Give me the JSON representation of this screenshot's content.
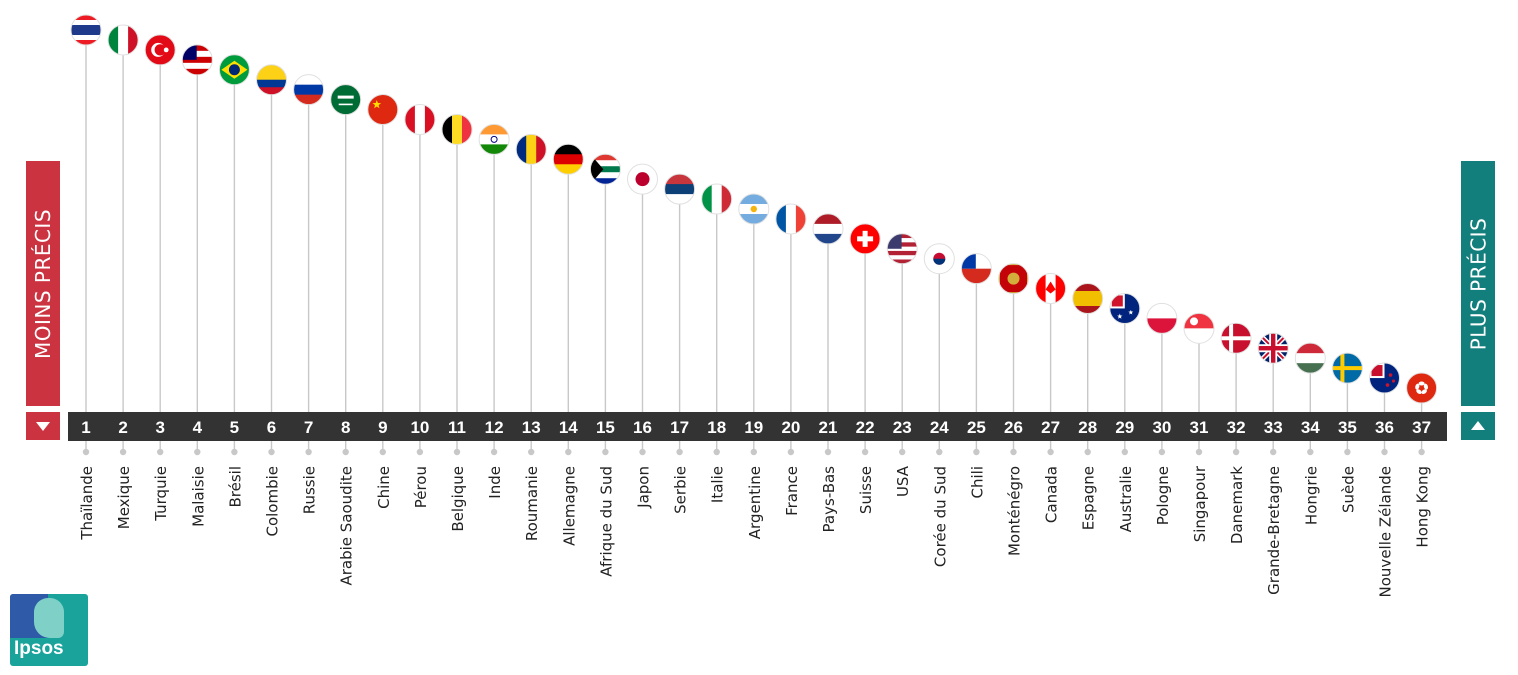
{
  "chart_data": {
    "type": "lollipop",
    "labels": {
      "left": "MOINS PRÉCIS",
      "right": "PLUS PRÉCIS"
    },
    "ranks": [
      1,
      2,
      3,
      4,
      5,
      6,
      7,
      8,
      9,
      10,
      11,
      12,
      13,
      14,
      15,
      16,
      17,
      18,
      19,
      20,
      21,
      22,
      23,
      24,
      25,
      26,
      27,
      28,
      29,
      30,
      31,
      32,
      33,
      34,
      35,
      36,
      37
    ],
    "countries": [
      "Thaïlande",
      "Mexique",
      "Turquie",
      "Malaisie",
      "Brésil",
      "Colombie",
      "Russie",
      "Arabie Saoudite",
      "Chine",
      "Pérou",
      "Belgique",
      "Inde",
      "Roumanie",
      "Allemagne",
      "Afrique du Sud",
      "Japon",
      "Serbie",
      "Italie",
      "Argentine",
      "France",
      "Pays-Bas",
      "Suisse",
      "USA",
      "Corée du Sud",
      "Chili",
      "Monténégro",
      "Canada",
      "Espagne",
      "Australie",
      "Pologne",
      "Singapour",
      "Danemark",
      "Grande-Bretagne",
      "Hongrie",
      "Suède",
      "Nouvelle Zélande",
      "Hong Kong"
    ],
    "flags": [
      {
        "type": "h",
        "colors": [
          "#ed1c24",
          "#ffffff",
          "#1f3a8a",
          "#1f3a8a",
          "#ffffff",
          "#ed1c24"
        ]
      },
      {
        "type": "v",
        "colors": [
          "#00843d",
          "#ffffff",
          "#ce1126"
        ]
      },
      {
        "type": "emblem",
        "bg": "#e30a17",
        "fg": "#ffffff",
        "icon": "crescent"
      },
      {
        "type": "h",
        "colors": [
          "#cc0001",
          "#ffffff",
          "#cc0001",
          "#ffffff",
          "#cc0001"
        ],
        "canton": "#010066"
      },
      {
        "type": "emblem",
        "bg": "#009c3b",
        "fg": "#ffdf00",
        "icon": "diamond"
      },
      {
        "type": "h",
        "colors": [
          "#fcd116",
          "#fcd116",
          "#003893",
          "#ce1126"
        ]
      },
      {
        "type": "h",
        "colors": [
          "#ffffff",
          "#0039a6",
          "#d52b1e"
        ]
      },
      {
        "type": "emblem",
        "bg": "#006c35",
        "fg": "#ffffff",
        "icon": "script"
      },
      {
        "type": "emblem",
        "bg": "#de2910",
        "fg": "#ffde00",
        "icon": "star"
      },
      {
        "type": "v",
        "colors": [
          "#d91023",
          "#ffffff",
          "#d91023"
        ]
      },
      {
        "type": "v",
        "colors": [
          "#000000",
          "#fdda24",
          "#ef3340"
        ]
      },
      {
        "type": "h",
        "colors": [
          "#ff9933",
          "#ffffff",
          "#138808"
        ],
        "icon": "wheel"
      },
      {
        "type": "v",
        "colors": [
          "#002b7f",
          "#fcd116",
          "#ce1126"
        ]
      },
      {
        "type": "h",
        "colors": [
          "#000000",
          "#dd0000",
          "#ffce00"
        ]
      },
      {
        "type": "h",
        "colors": [
          "#de3831",
          "#ffffff",
          "#007a4d",
          "#ffffff",
          "#002395"
        ],
        "triangle": "#000000"
      },
      {
        "type": "emblem",
        "bg": "#ffffff",
        "fg": "#bc002d",
        "icon": "disc"
      },
      {
        "type": "h",
        "colors": [
          "#c6363c",
          "#0c4076",
          "#ffffff"
        ]
      },
      {
        "type": "v",
        "colors": [
          "#009246",
          "#ffffff",
          "#ce2b37"
        ]
      },
      {
        "type": "h",
        "colors": [
          "#74acdf",
          "#ffffff",
          "#74acdf"
        ],
        "icon": "sun"
      },
      {
        "type": "v",
        "colors": [
          "#0055a4",
          "#ffffff",
          "#ef4135"
        ]
      },
      {
        "type": "h",
        "colors": [
          "#ae1c28",
          "#ffffff",
          "#21468b"
        ]
      },
      {
        "type": "emblem",
        "bg": "#ff0000",
        "fg": "#ffffff",
        "icon": "cross"
      },
      {
        "type": "h",
        "colors": [
          "#b22234",
          "#ffffff",
          "#b22234",
          "#ffffff",
          "#b22234",
          "#ffffff",
          "#b22234"
        ],
        "canton": "#3c3b6e"
      },
      {
        "type": "emblem",
        "bg": "#ffffff",
        "fg": "#c60c30",
        "icon": "taeguk"
      },
      {
        "type": "h",
        "colors": [
          "#ffffff",
          "#d52b1e"
        ],
        "canton": "#0039a6"
      },
      {
        "type": "emblem",
        "bg": "#c40308",
        "fg": "#d3ae3b",
        "icon": "eagle"
      },
      {
        "type": "v",
        "colors": [
          "#ff0000",
          "#ffffff",
          "#ff0000"
        ],
        "icon": "leaf"
      },
      {
        "type": "h",
        "colors": [
          "#aa151b",
          "#f1bf00",
          "#f1bf00",
          "#aa151b"
        ]
      },
      {
        "type": "emblem",
        "bg": "#00247d",
        "fg": "#ffffff",
        "icon": "stars"
      },
      {
        "type": "h",
        "colors": [
          "#ffffff",
          "#dc143c"
        ]
      },
      {
        "type": "h",
        "colors": [
          "#ef3340",
          "#ffffff"
        ],
        "icon": "moon"
      },
      {
        "type": "emblem",
        "bg": "#c8102e",
        "fg": "#ffffff",
        "icon": "nordic"
      },
      {
        "type": "emblem",
        "bg": "#012169",
        "fg": "#ffffff",
        "icon": "union"
      },
      {
        "type": "h",
        "colors": [
          "#ce2939",
          "#ffffff",
          "#477050"
        ]
      },
      {
        "type": "emblem",
        "bg": "#006aa7",
        "fg": "#fecc00",
        "icon": "nordic"
      },
      {
        "type": "emblem",
        "bg": "#00247d",
        "fg": "#cc142b",
        "icon": "nz"
      },
      {
        "type": "emblem",
        "bg": "#de2910",
        "fg": "#ffffff",
        "icon": "flower"
      }
    ]
  },
  "brand": {
    "logo_text": "Ipsos"
  }
}
